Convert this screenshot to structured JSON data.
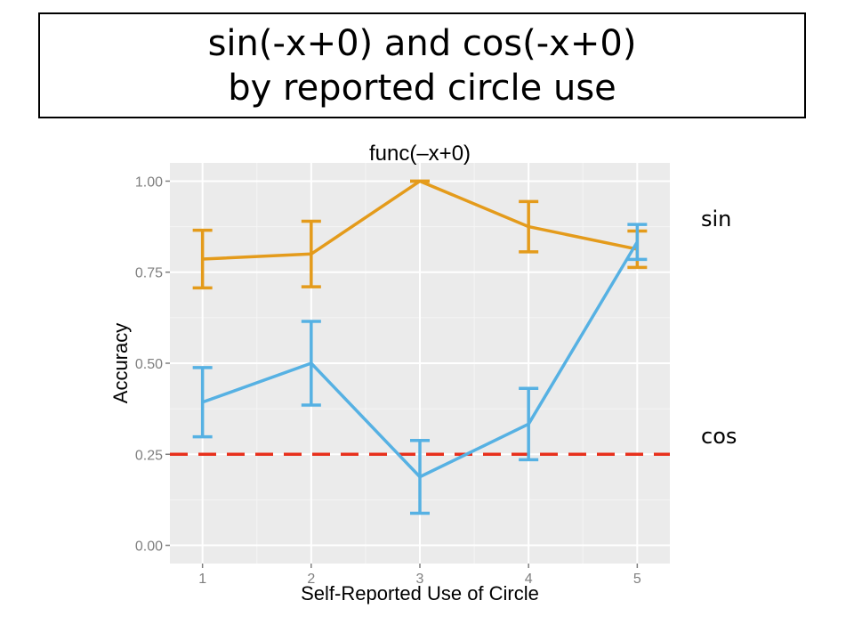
{
  "slide": {
    "title_line1": "sin(-x+0) and cos(-x+0)",
    "title_line2": "by reported circle use",
    "label_sin": "sin",
    "label_cos": "cos"
  },
  "chart_data": {
    "type": "line",
    "title": "func(–x+0)",
    "xlabel": "Self-Reported Use of Circle",
    "ylabel": "Accuracy",
    "x": [
      1,
      2,
      3,
      4,
      5
    ],
    "xticks": [
      "1",
      "2",
      "3",
      "4",
      "5"
    ],
    "xlim": [
      0.7,
      5.3
    ],
    "ylim": [
      -0.05,
      1.05
    ],
    "yticks": [
      "0.00",
      "0.25",
      "0.50",
      "0.75",
      "1.00"
    ],
    "grid": true,
    "reference_line": {
      "y": 0.25,
      "color": "#e8301c",
      "style": "dashed"
    },
    "series": [
      {
        "color": "#e49b1b",
        "values": [
          0.786,
          0.8,
          1.0,
          0.875,
          0.813
        ],
        "err_low": [
          0.707,
          0.71,
          1.0,
          0.806,
          0.763
        ],
        "err_high": [
          0.865,
          0.89,
          1.0,
          0.944,
          0.863
        ]
      },
      {
        "color": "#56b1e3",
        "values": [
          0.393,
          0.5,
          0.188,
          0.333,
          0.833
        ],
        "err_low": [
          0.298,
          0.385,
          0.088,
          0.235,
          0.785
        ],
        "err_high": [
          0.488,
          0.615,
          0.288,
          0.431,
          0.881
        ]
      }
    ]
  }
}
